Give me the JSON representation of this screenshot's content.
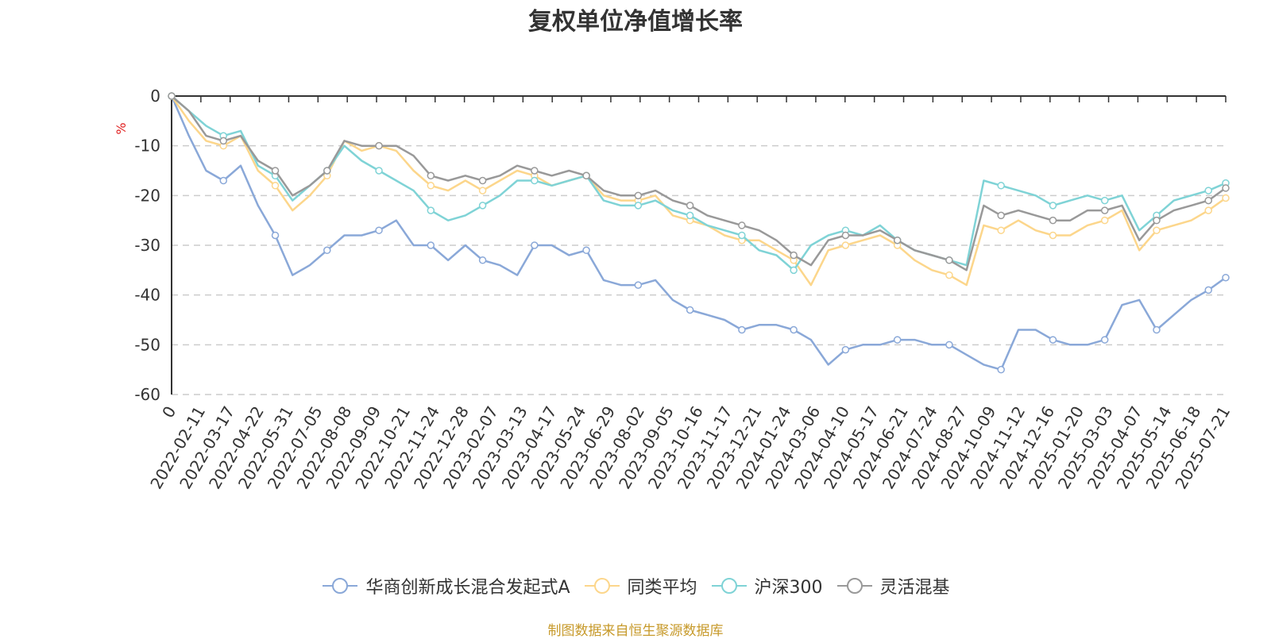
{
  "title": "复权单位净值增长率",
  "source_note": "制图数据来自恒生聚源数据库",
  "chart_data": {
    "type": "line",
    "ylabel": "%",
    "ylim": [
      -60,
      0
    ],
    "yticks": [
      0,
      -10,
      -20,
      -30,
      -40,
      -50,
      -60
    ],
    "ytick_labels": [
      "0",
      "-10",
      "-20",
      "-30",
      "-40",
      "-50",
      "-60"
    ],
    "xticks": [
      "0",
      "2022-02-11",
      "2022-03-17",
      "2022-04-22",
      "2022-05-31",
      "2022-07-05",
      "2022-08-08",
      "2022-09-09",
      "2022-10-21",
      "2022-11-24",
      "2022-12-28",
      "2023-02-07",
      "2023-03-13",
      "2023-04-17",
      "2023-05-24",
      "2023-06-29",
      "2023-08-02",
      "2023-09-05",
      "2023-10-16",
      "2023-11-17",
      "2023-12-21",
      "2024-01-24",
      "2024-03-06",
      "2024-04-10",
      "2024-05-17",
      "2024-06-21",
      "2024-07-24",
      "2024-08-27",
      "2024-10-09",
      "2024-11-12",
      "2024-12-16",
      "2025-01-20",
      "2025-03-03",
      "2025-04-07",
      "2025-05-14",
      "2025-06-18",
      "2025-07-21"
    ],
    "grid": "horizontal-dashed",
    "legend_position": "bottom",
    "series": [
      {
        "name": "华商创新成长混合发起式A",
        "color": "#8aa8d8",
        "values": [
          0,
          -8,
          -15,
          -17,
          -14,
          -22,
          -28,
          -36,
          -34,
          -31,
          -28,
          -28,
          -27,
          -25,
          -30,
          -30,
          -33,
          -30,
          -33,
          -34,
          -36,
          -30,
          -30,
          -32,
          -31,
          -37,
          -38,
          -38,
          -37,
          -41,
          -43,
          -44,
          -45,
          -47,
          -46,
          -46,
          -47,
          -49,
          -54,
          -51,
          -50,
          -50,
          -49,
          -49,
          -50,
          -50,
          -52,
          -54,
          -55,
          -47,
          -47,
          -49,
          -50,
          -50,
          -49,
          -42,
          -41,
          -47,
          -44,
          -41,
          -39,
          -36.5
        ]
      },
      {
        "name": "同类平均",
        "color": "#fcd68b",
        "values": [
          0,
          -5,
          -9,
          -10,
          -8,
          -15,
          -18,
          -23,
          -20,
          -16,
          -9,
          -11,
          -10,
          -11,
          -15,
          -18,
          -19,
          -17,
          -19,
          -17,
          -15,
          -16,
          -18,
          -17,
          -16,
          -20,
          -21,
          -21,
          -20,
          -24,
          -25,
          -26,
          -28,
          -29,
          -29,
          -31,
          -33,
          -38,
          -31,
          -30,
          -29,
          -28,
          -30,
          -33,
          -35,
          -36,
          -38,
          -26,
          -27,
          -25,
          -27,
          -28,
          -28,
          -26,
          -25,
          -23,
          -31,
          -27,
          -26,
          -25,
          -23,
          -20.5
        ]
      },
      {
        "name": "沪深300",
        "color": "#7fd3d6",
        "values": [
          0,
          -3,
          -6,
          -8,
          -7,
          -14,
          -16,
          -21,
          -18,
          -15,
          -10,
          -13,
          -15,
          -17,
          -19,
          -23,
          -25,
          -24,
          -22,
          -20,
          -17,
          -17,
          -18,
          -17,
          -16,
          -21,
          -22,
          -22,
          -21,
          -23,
          -24,
          -26,
          -27,
          -28,
          -31,
          -32,
          -35,
          -30,
          -28,
          -27,
          -28,
          -26,
          -29,
          -31,
          -32,
          -33,
          -34,
          -17,
          -18,
          -19,
          -20,
          -22,
          -21,
          -20,
          -21,
          -20,
          -27,
          -24,
          -21,
          -20,
          -19,
          -17.5
        ]
      },
      {
        "name": "灵活混基",
        "color": "#999999",
        "values": [
          0,
          -3,
          -8,
          -9,
          -8,
          -13,
          -15,
          -20,
          -18,
          -15,
          -9,
          -10,
          -10,
          -10,
          -12,
          -16,
          -17,
          -16,
          -17,
          -16,
          -14,
          -15,
          -16,
          -15,
          -16,
          -19,
          -20,
          -20,
          -19,
          -21,
          -22,
          -24,
          -25,
          -26,
          -27,
          -29,
          -32,
          -34,
          -29,
          -28,
          -28,
          -27,
          -29,
          -31,
          -32,
          -33,
          -35,
          -22,
          -24,
          -23,
          -24,
          -25,
          -25,
          -23,
          -23,
          -22,
          -29,
          -25,
          -23,
          -22,
          -21,
          -18.5
        ]
      }
    ]
  }
}
